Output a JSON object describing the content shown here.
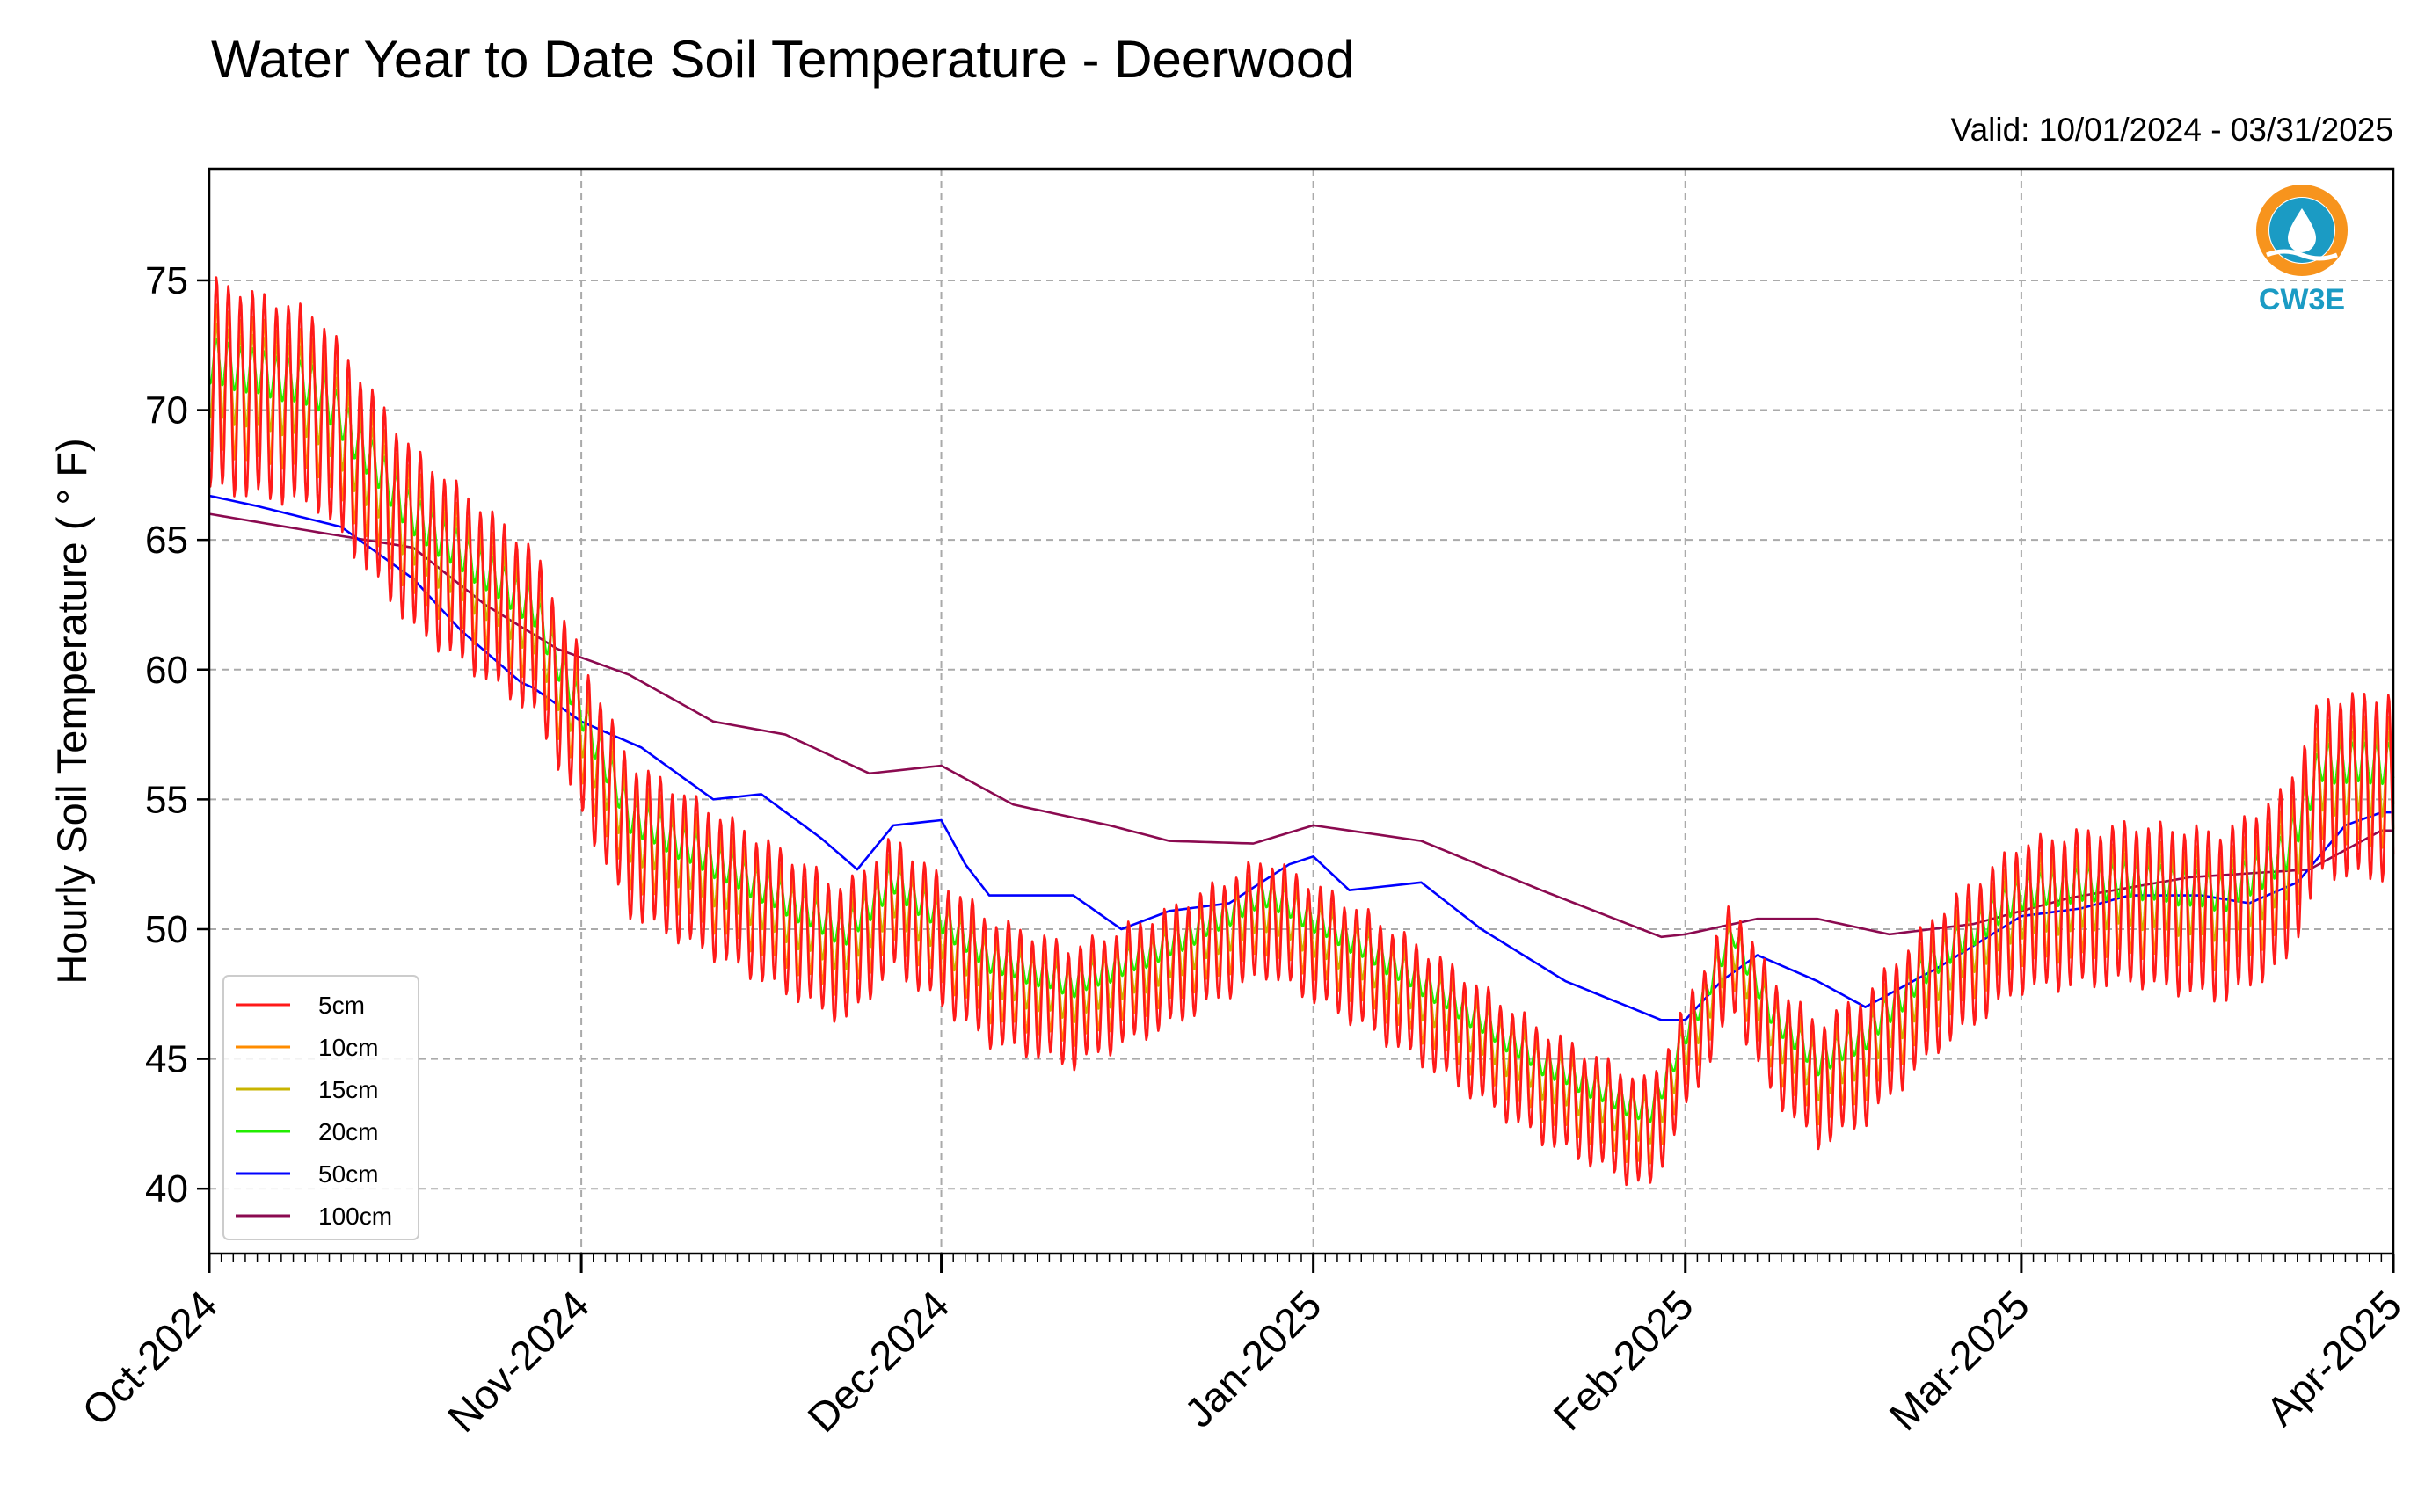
{
  "chart_data": {
    "type": "line",
    "title": "Water Year to Date Soil Temperature - Deerwood",
    "subtitle": "Valid: 10/01/2024 - 03/31/2025",
    "ylabel": "Hourly Soil Temperature ( ° F)",
    "xlabel": "",
    "ylim": [
      37.5,
      79.3
    ],
    "xlim": [
      "2024-10-01",
      "2025-04-01"
    ],
    "yticks": [
      40,
      45,
      50,
      55,
      60,
      65,
      70,
      75
    ],
    "xticks": [
      {
        "date": "2024-10-01",
        "label": "Oct-2024"
      },
      {
        "date": "2024-11-01",
        "label": "Nov-2024"
      },
      {
        "date": "2024-12-01",
        "label": "Dec-2024"
      },
      {
        "date": "2025-01-01",
        "label": "Jan-2025"
      },
      {
        "date": "2025-02-01",
        "label": "Feb-2025"
      },
      {
        "date": "2025-03-01",
        "label": "Mar-2025"
      },
      {
        "date": "2025-04-01",
        "label": "Apr-2025"
      }
    ],
    "grid": true,
    "legend_position": "lower-left",
    "series": [
      {
        "name": "5cm",
        "color": "#ff1a1a",
        "amplitude": 1.0,
        "offset": 0,
        "base": [
          [
            "2024-10-01",
            71
          ],
          [
            "2024-10-10",
            70
          ],
          [
            "2024-10-18",
            65
          ],
          [
            "2024-10-28",
            61.5
          ],
          [
            "2024-11-05",
            53.5
          ],
          [
            "2024-11-15",
            51
          ],
          [
            "2024-11-23",
            49
          ],
          [
            "2024-11-27",
            51
          ],
          [
            "2024-12-05",
            48
          ],
          [
            "2024-12-12",
            47
          ],
          [
            "2024-12-20",
            48.5
          ],
          [
            "2024-12-28",
            50.5
          ],
          [
            "2025-01-05",
            48.5
          ],
          [
            "2025-01-12",
            46.5
          ],
          [
            "2025-01-20",
            44
          ],
          [
            "2025-01-29",
            42
          ],
          [
            "2025-02-02",
            46
          ],
          [
            "2025-02-05",
            49
          ],
          [
            "2025-02-08",
            46
          ],
          [
            "2025-02-12",
            44
          ],
          [
            "2025-02-16",
            45
          ],
          [
            "2025-02-22",
            48
          ],
          [
            "2025-03-01",
            50.5
          ],
          [
            "2025-03-10",
            51
          ],
          [
            "2025-03-18",
            50.5
          ],
          [
            "2025-03-23",
            52
          ],
          [
            "2025-03-26",
            55.5
          ],
          [
            "2025-03-31",
            55.5
          ]
        ],
        "swing": [
          [
            "2024-10-01",
            4
          ],
          [
            "2024-10-15",
            3.5
          ],
          [
            "2024-11-01",
            3
          ],
          [
            "2024-11-20",
            2.6
          ],
          [
            "2024-12-15",
            2.2
          ],
          [
            "2025-01-10",
            2.2
          ],
          [
            "2025-02-01",
            2
          ],
          [
            "2025-03-01",
            2.8
          ],
          [
            "2025-03-31",
            3.5
          ]
        ]
      },
      {
        "name": "10cm",
        "color": "#ff8c00",
        "amplitude": 0.7,
        "offset": 0.2
      },
      {
        "name": "15cm",
        "color": "#c8b400",
        "amplitude": 0.45,
        "offset": 0.5
      },
      {
        "name": "20cm",
        "color": "#22ee00",
        "amplitude": 0.22,
        "offset": 0.9
      },
      {
        "name": "50cm",
        "color": "#0000ff",
        "values": [
          [
            "2024-10-01",
            66.7
          ],
          [
            "2024-10-05",
            66.3
          ],
          [
            "2024-10-12",
            65.5
          ],
          [
            "2024-10-18",
            63.5
          ],
          [
            "2024-10-22",
            61.5
          ],
          [
            "2024-10-27",
            59.5
          ],
          [
            "2024-10-28",
            59.3
          ],
          [
            "2024-11-01",
            58
          ],
          [
            "2024-11-06",
            57
          ],
          [
            "2024-11-12",
            55
          ],
          [
            "2024-11-16",
            55.2
          ],
          [
            "2024-11-21",
            53.5
          ],
          [
            "2024-11-24",
            52.3
          ],
          [
            "2024-11-27",
            54
          ],
          [
            "2024-12-01",
            54.2
          ],
          [
            "2024-12-03",
            52.5
          ],
          [
            "2024-12-05",
            51.3
          ],
          [
            "2024-12-12",
            51.3
          ],
          [
            "2024-12-16",
            50
          ],
          [
            "2024-12-20",
            50.7
          ],
          [
            "2024-12-25",
            51
          ],
          [
            "2024-12-30",
            52.5
          ],
          [
            "2025-01-01",
            52.8
          ],
          [
            "2025-01-04",
            51.5
          ],
          [
            "2025-01-10",
            51.8
          ],
          [
            "2025-01-15",
            50
          ],
          [
            "2025-01-22",
            48
          ],
          [
            "2025-01-30",
            46.5
          ],
          [
            "2025-02-01",
            46.5
          ],
          [
            "2025-02-04",
            48
          ],
          [
            "2025-02-07",
            49
          ],
          [
            "2025-02-12",
            48
          ],
          [
            "2025-02-16",
            47
          ],
          [
            "2025-02-22",
            48.5
          ],
          [
            "2025-03-01",
            50.5
          ],
          [
            "2025-03-06",
            50.8
          ],
          [
            "2025-03-10",
            51.3
          ],
          [
            "2025-03-16",
            51.3
          ],
          [
            "2025-03-20",
            51
          ],
          [
            "2025-03-24",
            51.8
          ],
          [
            "2025-03-28",
            54
          ],
          [
            "2025-03-31",
            54.5
          ]
        ]
      },
      {
        "name": "100cm",
        "color": "#8b0a50",
        "values": [
          [
            "2024-10-01",
            66
          ],
          [
            "2024-10-10",
            65.3
          ],
          [
            "2024-10-18",
            64.7
          ],
          [
            "2024-10-24",
            62.5
          ],
          [
            "2024-10-30",
            60.8
          ],
          [
            "2024-11-05",
            59.8
          ],
          [
            "2024-11-12",
            58
          ],
          [
            "2024-11-18",
            57.5
          ],
          [
            "2024-11-25",
            56
          ],
          [
            "2024-12-01",
            56.3
          ],
          [
            "2024-12-07",
            54.8
          ],
          [
            "2024-12-15",
            54
          ],
          [
            "2024-12-20",
            53.4
          ],
          [
            "2024-12-27",
            53.3
          ],
          [
            "2025-01-01",
            54
          ],
          [
            "2025-01-10",
            53.4
          ],
          [
            "2025-01-20",
            51.5
          ],
          [
            "2025-01-30",
            49.7
          ],
          [
            "2025-02-01",
            49.8
          ],
          [
            "2025-02-07",
            50.4
          ],
          [
            "2025-02-12",
            50.4
          ],
          [
            "2025-02-18",
            49.8
          ],
          [
            "2025-02-25",
            50.2
          ],
          [
            "2025-03-05",
            51.2
          ],
          [
            "2025-03-15",
            52
          ],
          [
            "2025-03-25",
            52.3
          ],
          [
            "2025-03-31",
            53.8
          ]
        ]
      }
    ]
  },
  "logo": {
    "text": "CW3E",
    "ring_color": "#f7941d",
    "wave_color": "#1b9bc4"
  }
}
